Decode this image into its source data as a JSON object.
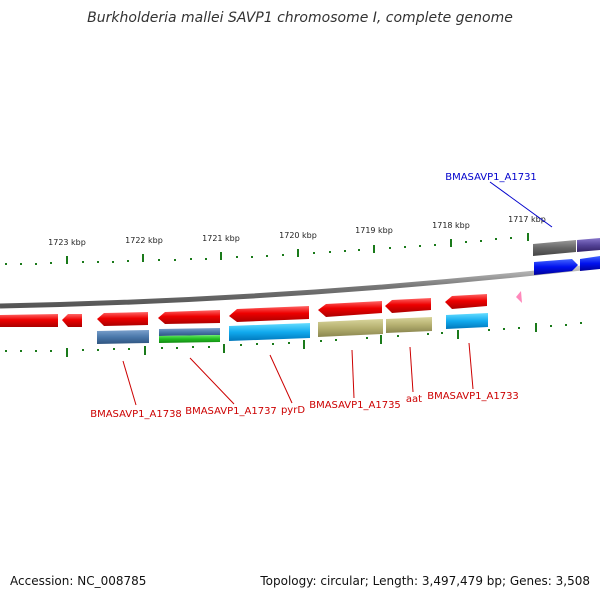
{
  "title": "Burkholderia mallei SAVP1 chromosome I, complete genome",
  "footer": {
    "accession": "Accession: NC_008785",
    "summary": "Topology: circular; Length: 3,497,479 bp; Genes: 3,508"
  },
  "colors": {
    "forward_label": "#0000cc",
    "reverse_label": "#cc0000",
    "tick": "#1a7a1a",
    "backbone": "#7a7a7a",
    "cds_red": "#ee0000",
    "rna_pink": "#ff88bb"
  },
  "kbp_ticks": [
    {
      "label": "1723 kbp"
    },
    {
      "label": "1722 kbp"
    },
    {
      "label": "1721 kbp"
    },
    {
      "label": "1720 kbp"
    },
    {
      "label": "1719 kbp"
    },
    {
      "label": "1718 kbp"
    },
    {
      "label": "1717 kbp"
    }
  ],
  "gene_labels": [
    {
      "text": "BMASAVP1_A1731",
      "strand": "forward"
    },
    {
      "text": "BMASAVP1_A1738",
      "strand": "reverse"
    },
    {
      "text": "BMASAVP1_A1737",
      "strand": "reverse"
    },
    {
      "text": "pyrD",
      "strand": "reverse"
    },
    {
      "text": "BMASAVP1_A1735",
      "strand": "reverse"
    },
    {
      "text": "aat",
      "strand": "reverse"
    },
    {
      "text": "BMASAVP1_A1733",
      "strand": "reverse"
    }
  ]
}
